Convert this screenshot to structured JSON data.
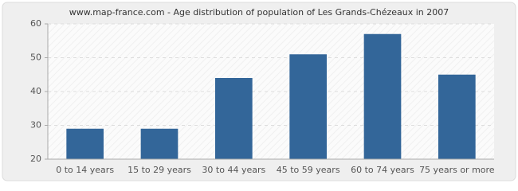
{
  "chart_data": {
    "type": "bar",
    "title": "www.map-france.com - Age distribution of population of Les Grands-Chézeaux in 2007",
    "categories": [
      "0 to 14 years",
      "15 to 29 years",
      "30 to 44 years",
      "45 to 59 years",
      "60 to 74 years",
      "75 years or more"
    ],
    "values": [
      29,
      29,
      44,
      51,
      57,
      45
    ],
    "color": "#336699",
    "ylim": [
      20,
      60
    ],
    "yticks": [
      20,
      30,
      40,
      50,
      60
    ],
    "grid": true
  }
}
